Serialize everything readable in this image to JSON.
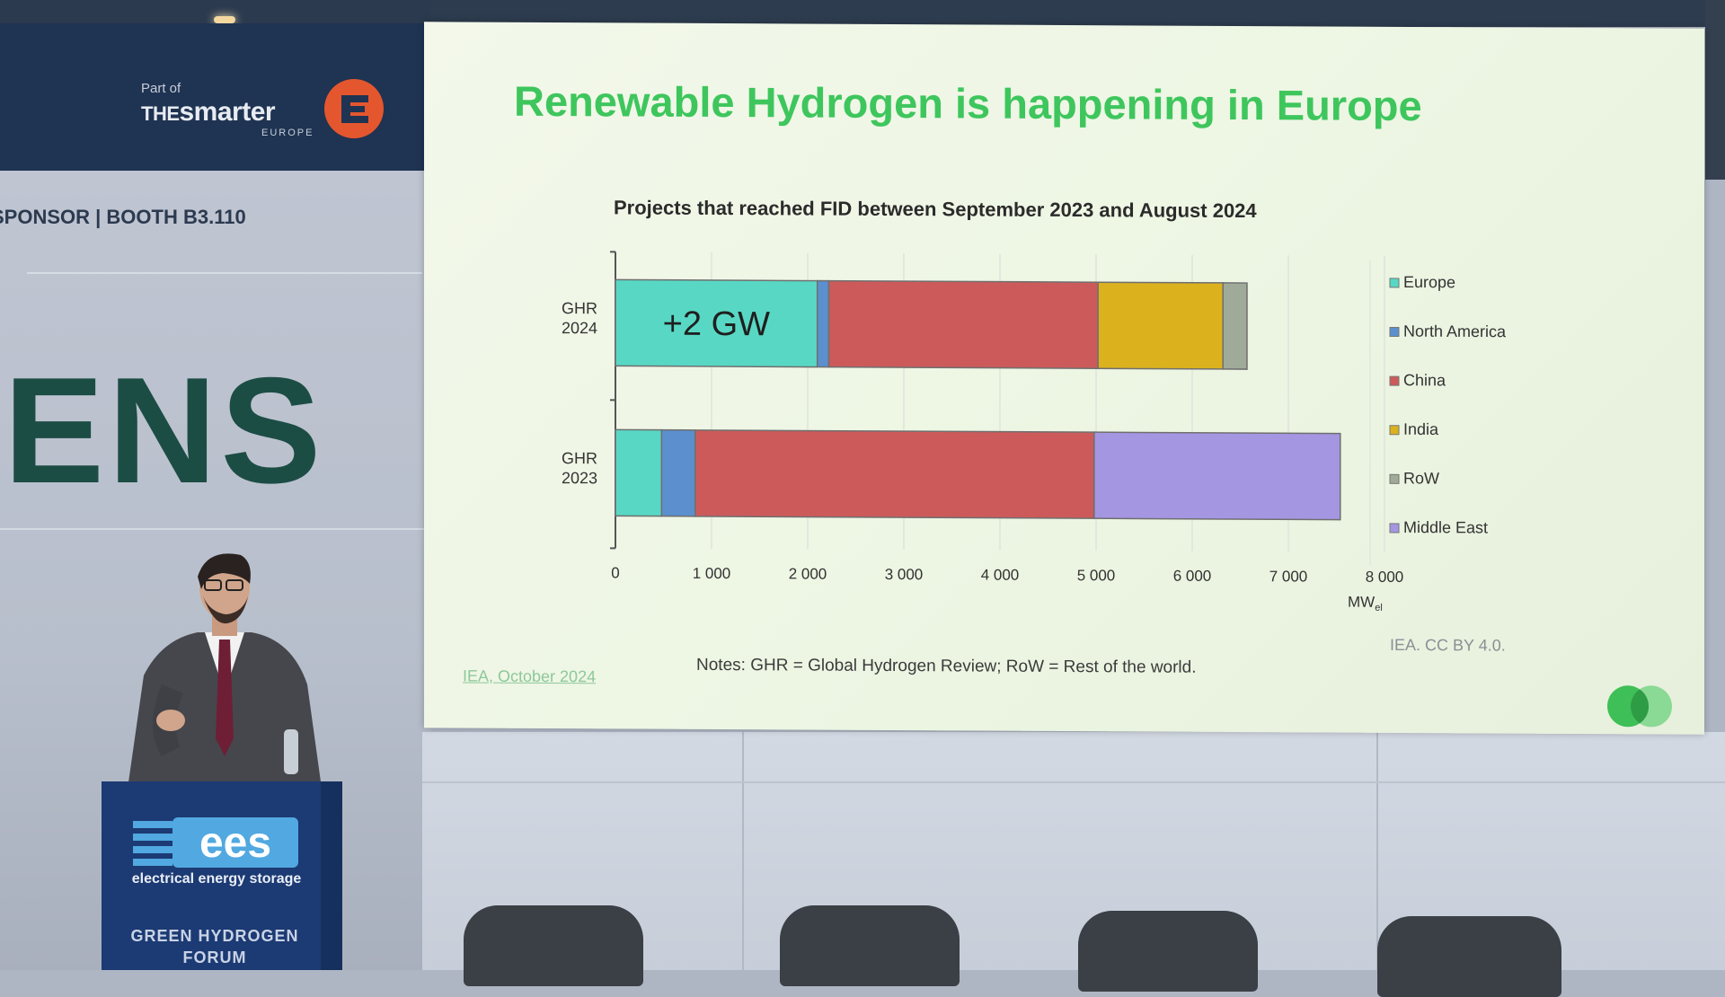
{
  "venue": {
    "sponsor_strip": "SPONSOR | BOOTH B3.110",
    "wall_text": "ENS",
    "smarter_logo": {
      "part_of": "Part of",
      "the": "THE",
      "name": "smarter",
      "region": "EUROPE"
    }
  },
  "podium": {
    "logo_text": "ees",
    "logo_caption": "electrical energy storage",
    "forum_label_line1": "GREEN HYDROGEN",
    "forum_label_line2": "FORUM"
  },
  "slide": {
    "title": "Renewable Hydrogen is happening in Europe",
    "notes": "Notes: GHR = Global Hydrogen Review; RoW = Rest of the world.",
    "source": "IEA, October 2024",
    "credit": "IEA. CC BY 4.0."
  },
  "chart_data": {
    "type": "bar",
    "orientation": "horizontal",
    "stacked": true,
    "title": "Projects that reached FID between September 2023 and August 2024",
    "xlabel": "MW",
    "xlabel_subscript": "el",
    "xlim": [
      0,
      8000
    ],
    "xticks": [
      "0",
      "1 000",
      "2 000",
      "3 000",
      "4 000",
      "5 000",
      "6 000",
      "7 000",
      "8 000"
    ],
    "grid": true,
    "legend_position": "right",
    "categories": [
      [
        "GHR",
        "2024"
      ],
      [
        "GHR",
        "2023"
      ]
    ],
    "series": [
      {
        "name": "Europe",
        "color": "#58d8c4",
        "values": [
          2100,
          480
        ]
      },
      {
        "name": "North America",
        "color": "#5b8fce",
        "values": [
          120,
          350
        ]
      },
      {
        "name": "China",
        "color": "#cd5a5a",
        "values": [
          2800,
          4150
        ]
      },
      {
        "name": "India",
        "color": "#dbb21e",
        "values": [
          1300,
          0
        ]
      },
      {
        "name": "RoW",
        "color": "#a0aa98",
        "values": [
          250,
          0
        ]
      },
      {
        "name": "Middle East",
        "color": "#a596e2",
        "values": [
          0,
          2560
        ]
      }
    ],
    "annotations": [
      {
        "text": "+2 GW",
        "category": 0,
        "series": "Europe"
      }
    ]
  }
}
